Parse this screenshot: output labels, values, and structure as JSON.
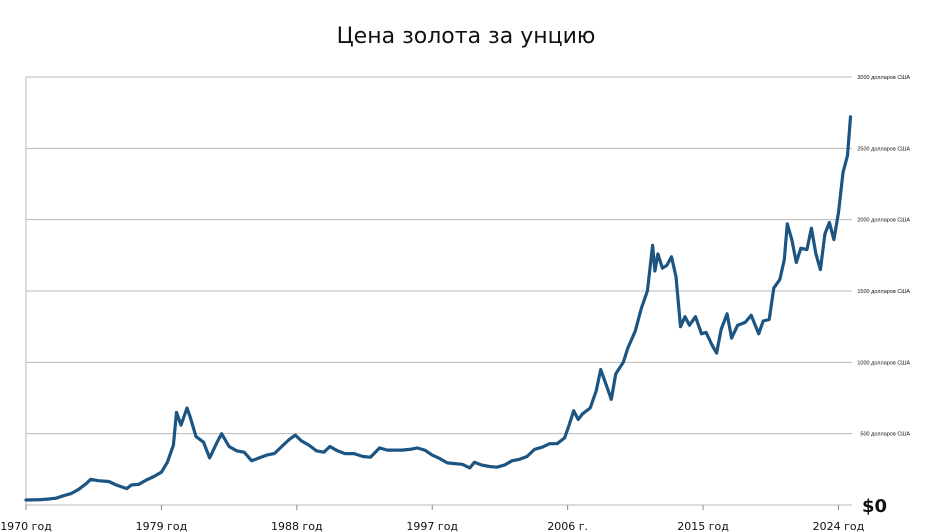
{
  "title": "Цена золота за унцию",
  "colors": {
    "line": "#1c5482",
    "grid": "#b8b8b8",
    "text": "#111111"
  },
  "chart_data": {
    "type": "line",
    "title": "Цена золота за унцию",
    "xlim": [
      1970,
      2024.9
    ],
    "ylim": [
      0,
      3000
    ],
    "x_ticks": [
      {
        "value": 1970,
        "label": "1970 год"
      },
      {
        "value": 1979,
        "label": "1979 год"
      },
      {
        "value": 1988,
        "label": "1988 год"
      },
      {
        "value": 1997,
        "label": "1997 год"
      },
      {
        "value": 2006,
        "label": "2006 г."
      },
      {
        "value": 2015,
        "label": "2015 год"
      },
      {
        "value": 2024,
        "label": "2024 год"
      }
    ],
    "y_ticks": [
      {
        "value": 0,
        "label": "$0"
      },
      {
        "value": 500,
        "label": "500 долларов США"
      },
      {
        "value": 1000,
        "label": "1000 долларов США"
      },
      {
        "value": 1500,
        "label": "1500 долларов США"
      },
      {
        "value": 2000,
        "label": "2000 долларов США"
      },
      {
        "value": 2500,
        "label": "2500 долларов США"
      },
      {
        "value": 3000,
        "label": "3000 долларов США"
      }
    ],
    "grid": true,
    "series": [
      {
        "points": [
          [
            1970.0,
            35
          ],
          [
            1971.0,
            38
          ],
          [
            1971.5,
            42
          ],
          [
            1972.0,
            48
          ],
          [
            1972.5,
            65
          ],
          [
            1973.0,
            80
          ],
          [
            1973.5,
            110
          ],
          [
            1974.0,
            150
          ],
          [
            1974.3,
            180
          ],
          [
            1974.8,
            170
          ],
          [
            1975.5,
            165
          ],
          [
            1976.0,
            140
          ],
          [
            1976.7,
            115
          ],
          [
            1977.0,
            140
          ],
          [
            1977.5,
            145
          ],
          [
            1978.0,
            175
          ],
          [
            1978.5,
            200
          ],
          [
            1979.0,
            230
          ],
          [
            1979.4,
            300
          ],
          [
            1979.8,
            420
          ],
          [
            1980.0,
            650
          ],
          [
            1980.3,
            560
          ],
          [
            1980.7,
            680
          ],
          [
            1980.9,
            620
          ],
          [
            1981.3,
            480
          ],
          [
            1981.8,
            440
          ],
          [
            1982.2,
            330
          ],
          [
            1982.7,
            440
          ],
          [
            1983.0,
            500
          ],
          [
            1983.5,
            410
          ],
          [
            1984.0,
            380
          ],
          [
            1984.5,
            370
          ],
          [
            1985.0,
            310
          ],
          [
            1985.5,
            330
          ],
          [
            1986.0,
            350
          ],
          [
            1986.5,
            360
          ],
          [
            1987.0,
            410
          ],
          [
            1987.5,
            460
          ],
          [
            1987.9,
            490
          ],
          [
            1988.3,
            450
          ],
          [
            1988.8,
            420
          ],
          [
            1989.3,
            380
          ],
          [
            1989.8,
            370
          ],
          [
            1990.2,
            410
          ],
          [
            1990.7,
            380
          ],
          [
            1991.2,
            360
          ],
          [
            1991.8,
            360
          ],
          [
            1992.4,
            340
          ],
          [
            1992.9,
            335
          ],
          [
            1993.5,
            400
          ],
          [
            1994.0,
            385
          ],
          [
            1994.5,
            385
          ],
          [
            1995.0,
            385
          ],
          [
            1995.5,
            390
          ],
          [
            1996.0,
            400
          ],
          [
            1996.5,
            385
          ],
          [
            1997.0,
            350
          ],
          [
            1997.5,
            325
          ],
          [
            1998.0,
            295
          ],
          [
            1998.5,
            290
          ],
          [
            1999.0,
            285
          ],
          [
            1999.5,
            260
          ],
          [
            1999.8,
            300
          ],
          [
            2000.3,
            280
          ],
          [
            2000.8,
            270
          ],
          [
            2001.3,
            265
          ],
          [
            2001.8,
            280
          ],
          [
            2002.3,
            310
          ],
          [
            2002.8,
            320
          ],
          [
            2003.3,
            340
          ],
          [
            2003.8,
            390
          ],
          [
            2004.3,
            405
          ],
          [
            2004.8,
            430
          ],
          [
            2005.3,
            430
          ],
          [
            2005.8,
            470
          ],
          [
            2006.1,
            560
          ],
          [
            2006.4,
            660
          ],
          [
            2006.7,
            600
          ],
          [
            2007.0,
            640
          ],
          [
            2007.5,
            680
          ],
          [
            2007.9,
            800
          ],
          [
            2008.2,
            950
          ],
          [
            2008.6,
            830
          ],
          [
            2008.9,
            740
          ],
          [
            2009.2,
            920
          ],
          [
            2009.7,
            1000
          ],
          [
            2010.0,
            1100
          ],
          [
            2010.5,
            1220
          ],
          [
            2010.9,
            1380
          ],
          [
            2011.3,
            1500
          ],
          [
            2011.65,
            1820
          ],
          [
            2011.8,
            1640
          ],
          [
            2012.0,
            1760
          ],
          [
            2012.3,
            1660
          ],
          [
            2012.6,
            1680
          ],
          [
            2012.9,
            1740
          ],
          [
            2013.2,
            1600
          ],
          [
            2013.5,
            1250
          ],
          [
            2013.8,
            1320
          ],
          [
            2014.1,
            1260
          ],
          [
            2014.5,
            1320
          ],
          [
            2014.9,
            1200
          ],
          [
            2015.2,
            1210
          ],
          [
            2015.6,
            1120
          ],
          [
            2015.9,
            1065
          ],
          [
            2016.2,
            1230
          ],
          [
            2016.6,
            1340
          ],
          [
            2016.9,
            1170
          ],
          [
            2017.3,
            1260
          ],
          [
            2017.8,
            1280
          ],
          [
            2018.2,
            1330
          ],
          [
            2018.7,
            1200
          ],
          [
            2019.0,
            1290
          ],
          [
            2019.4,
            1300
          ],
          [
            2019.7,
            1520
          ],
          [
            2020.1,
            1580
          ],
          [
            2020.4,
            1720
          ],
          [
            2020.6,
            1970
          ],
          [
            2020.9,
            1860
          ],
          [
            2021.2,
            1700
          ],
          [
            2021.5,
            1800
          ],
          [
            2021.9,
            1790
          ],
          [
            2022.2,
            1940
          ],
          [
            2022.5,
            1760
          ],
          [
            2022.8,
            1650
          ],
          [
            2023.1,
            1900
          ],
          [
            2023.4,
            1980
          ],
          [
            2023.7,
            1860
          ],
          [
            2024.0,
            2050
          ],
          [
            2024.3,
            2330
          ],
          [
            2024.6,
            2450
          ],
          [
            2024.8,
            2720
          ]
        ]
      }
    ]
  }
}
